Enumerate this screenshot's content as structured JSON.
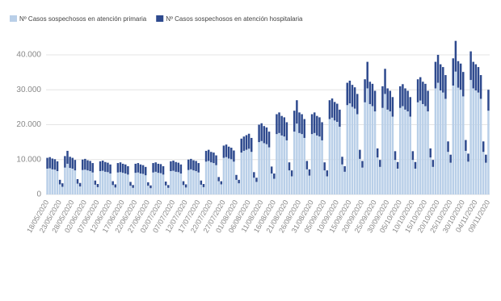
{
  "chart_data": {
    "type": "stacked_bar",
    "series": [
      {
        "name": "Nº Casos sospechosos en atención primaria",
        "color": "#b9cfe8",
        "values": [
          7400,
          7500,
          7200,
          7100,
          6700,
          2900,
          2200,
          7700,
          8800,
          7600,
          7400,
          6900,
          3100,
          2300,
          7000,
          7100,
          6900,
          6700,
          6300,
          2800,
          2100,
          6700,
          6800,
          6500,
          6400,
          6000,
          2700,
          2000,
          6300,
          6400,
          6200,
          6000,
          5700,
          2500,
          1900,
          6200,
          6300,
          6000,
          5900,
          5500,
          2500,
          1800,
          6300,
          6500,
          6200,
          6100,
          5700,
          2600,
          1900,
          6700,
          6800,
          6500,
          6400,
          6000,
          2700,
          2000,
          7000,
          7200,
          6900,
          6700,
          6300,
          2800,
          2100,
          9400,
          9600,
          9200,
          9000,
          8400,
          3800,
          2900,
          10500,
          10700,
          10300,
          10100,
          9400,
          4200,
          3200,
          12000,
          12500,
          12800,
          13100,
          12200,
          4800,
          3600,
          15000,
          15300,
          14700,
          14400,
          13500,
          6000,
          4500,
          17300,
          17600,
          16900,
          16600,
          15500,
          6900,
          5200,
          18000,
          20300,
          17600,
          17300,
          16200,
          7200,
          5400,
          17300,
          17600,
          16900,
          16600,
          15500,
          6900,
          5200,
          21600,
          22000,
          21200,
          20800,
          19400,
          8600,
          6500,
          25600,
          26100,
          25100,
          24600,
          23000,
          10200,
          7700,
          26400,
          30400,
          25900,
          25300,
          23800,
          10600,
          7900,
          24800,
          28800,
          24300,
          23800,
          22300,
          9900,
          7400,
          24800,
          25300,
          24300,
          23800,
          22300,
          9900,
          7400,
          26400,
          26900,
          25900,
          25300,
          23800,
          10600,
          7900,
          30400,
          32000,
          29800,
          29200,
          27400,
          12200,
          9100,
          31200,
          35200,
          30600,
          30000,
          28100,
          12500,
          9400,
          32800,
          30400,
          29800,
          29200,
          27400,
          12200,
          9100,
          24000
        ]
      },
      {
        "name": "Nº Casos sospechosos en atención hospitalaria",
        "color": "#2e4a8e",
        "values": [
          3100,
          3200,
          3100,
          3000,
          2800,
          1300,
          1000,
          3300,
          3700,
          3200,
          3100,
          3000,
          1300,
          1000,
          3000,
          3100,
          2900,
          2900,
          2700,
          1200,
          900,
          2800,
          2900,
          2800,
          2700,
          2600,
          1100,
          900,
          2700,
          2800,
          2600,
          2600,
          2400,
          1100,
          800,
          2600,
          2700,
          2600,
          2500,
          2400,
          1000,
          800,
          2700,
          2700,
          2600,
          2600,
          2400,
          1100,
          800,
          2800,
          2900,
          2800,
          2700,
          2600,
          1100,
          900,
          3000,
          3000,
          2900,
          2900,
          2700,
          1200,
          900,
          3100,
          3200,
          3000,
          3000,
          2800,
          1200,
          900,
          3500,
          3600,
          3400,
          3300,
          3200,
          1400,
          1000,
          4000,
          4100,
          4200,
          4300,
          4000,
          1600,
          1200,
          5000,
          5100,
          4900,
          4800,
          4500,
          2000,
          1500,
          5700,
          5900,
          5600,
          5500,
          5200,
          2300,
          1700,
          6000,
          6700,
          5900,
          5700,
          5400,
          2400,
          1800,
          5700,
          5900,
          5600,
          5500,
          5200,
          2300,
          1700,
          5400,
          5500,
          5300,
          5200,
          4900,
          2200,
          1600,
          6400,
          6500,
          6300,
          6100,
          5800,
          2600,
          1900,
          6600,
          7600,
          6400,
          6400,
          5900,
          2600,
          2000,
          6200,
          7200,
          6100,
          5900,
          5600,
          2500,
          1900,
          6200,
          6300,
          6100,
          5900,
          5600,
          2500,
          1900,
          6600,
          6700,
          6400,
          6400,
          5900,
          2600,
          2000,
          7600,
          8000,
          7500,
          7300,
          6800,
          3000,
          2300,
          7800,
          8800,
          7600,
          7500,
          7000,
          3100,
          2300,
          8200,
          7600,
          7500,
          7300,
          6800,
          3000,
          2300,
          6000
        ]
      }
    ],
    "categories": [
      "18/05/2020",
      null,
      null,
      null,
      null,
      "23/05/2020",
      null,
      null,
      null,
      null,
      "28/05/2020",
      null,
      null,
      null,
      null,
      "02/06/2020",
      null,
      null,
      null,
      null,
      "07/06/2020",
      null,
      null,
      null,
      null,
      "12/06/2020",
      null,
      null,
      null,
      null,
      "17/06/2020",
      null,
      null,
      null,
      null,
      "22/06/2020",
      null,
      null,
      null,
      null,
      "27/06/2020",
      null,
      null,
      null,
      null,
      "02/07/2020",
      null,
      null,
      null,
      null,
      "07/07/2020",
      null,
      null,
      null,
      null,
      "12/07/2020",
      null,
      null,
      null,
      null,
      "17/07/2020",
      null,
      null,
      null,
      null,
      "22/07/2020",
      null,
      null,
      null,
      null,
      "27/07/2020",
      null,
      null,
      null,
      null,
      "01/08/2020",
      null,
      null,
      null,
      null,
      "06/08/2020",
      null,
      null,
      null,
      null,
      "11/08/2020",
      null,
      null,
      null,
      null,
      "16/08/2020",
      null,
      null,
      null,
      null,
      "21/08/2020",
      null,
      null,
      null,
      null,
      "26/08/2020",
      null,
      null,
      null,
      null,
      "31/08/2020",
      null,
      null,
      null,
      null,
      "05/09/2020",
      null,
      null,
      null,
      null,
      "10/09/2020",
      null,
      null,
      null,
      null,
      "15/09/2020",
      null,
      null,
      null,
      null,
      "20/09/2020",
      null,
      null,
      null,
      null,
      "25/09/2020",
      null,
      null,
      null,
      null,
      "30/09/2020",
      null,
      null,
      null,
      null,
      "05/10/2020",
      null,
      null,
      null,
      null,
      "10/10/2020",
      null,
      null,
      null,
      null,
      "15/10/2020",
      null,
      null,
      null,
      null,
      "20/10/2020",
      null,
      null,
      null,
      null,
      "25/10/2020",
      null,
      null,
      null,
      null,
      "30/10/2020",
      null,
      null,
      null,
      null,
      "04/11/2020",
      null,
      null,
      null,
      null,
      "09/11/2020"
    ],
    "ylim": [
      0,
      46000
    ],
    "yticks": [
      0,
      {
        "value": 10000,
        "label": "10.000"
      },
      {
        "value": 20000,
        "label": "20.000"
      },
      {
        "value": 30000,
        "label": "30.000"
      },
      {
        "value": 40000,
        "label": "40.000"
      }
    ],
    "grid": true
  }
}
